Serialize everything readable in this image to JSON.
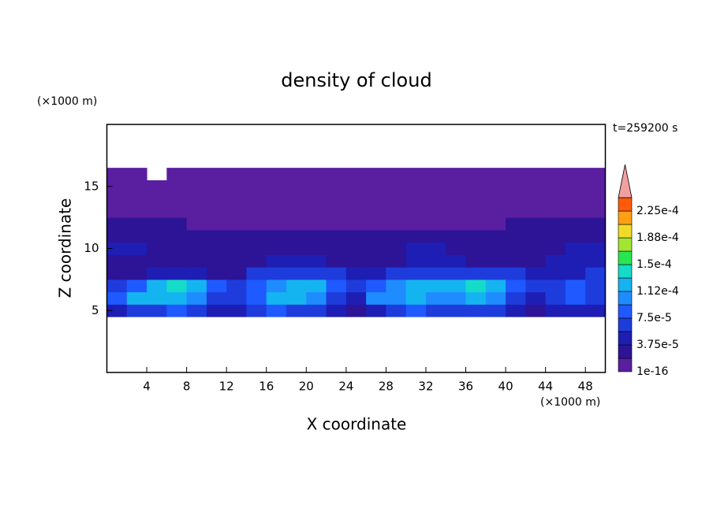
{
  "chart_data": {
    "type": "contour",
    "title": "density of cloud",
    "x_label": "X coordinate",
    "y_label": "Z coordinate",
    "x_unit": "(×1000 m)",
    "y_unit": "(×1000 m)",
    "time_label": "t=259200 s",
    "xlim": [
      0,
      50
    ],
    "ylim": [
      0,
      20
    ],
    "xticks": [
      4,
      8,
      12,
      16,
      20,
      24,
      28,
      32,
      36,
      40,
      44,
      48
    ],
    "yticks": [
      5,
      10,
      15
    ],
    "x": [
      1,
      3,
      5,
      7,
      9,
      11,
      13,
      15,
      17,
      19,
      21,
      23,
      25,
      27,
      29,
      31,
      33,
      35,
      37,
      39,
      41,
      43,
      45,
      47,
      49
    ],
    "z": [
      5,
      6,
      7,
      8,
      9,
      10,
      11,
      12,
      13,
      14,
      15,
      16
    ],
    "values": [
      [
        4.5e-05,
        6.5e-05,
        6.5e-05,
        8.5e-05,
        6.5e-05,
        4.5e-05,
        4.5e-05,
        6.5e-05,
        8.5e-05,
        6.5e-05,
        6.5e-05,
        4.5e-05,
        2.5e-05,
        4.5e-05,
        6.5e-05,
        8.5e-05,
        6.5e-05,
        6.5e-05,
        6.5e-05,
        6.5e-05,
        4.5e-05,
        2.5e-05,
        4.5e-05,
        4.5e-05,
        4.5e-05
      ],
      [
        8.5e-05,
        0.00012,
        0.00012,
        0.00012,
        0.000105,
        6.5e-05,
        6.5e-05,
        8.5e-05,
        0.00012,
        0.00012,
        0.000105,
        6.5e-05,
        4.5e-05,
        0.000105,
        0.000105,
        0.00012,
        0.000105,
        0.000105,
        0.00012,
        0.000105,
        6.5e-05,
        4.5e-05,
        6.5e-05,
        8.5e-05,
        6.5e-05
      ],
      [
        6.5e-05,
        8.5e-05,
        0.00012,
        0.00014,
        0.00012,
        8.5e-05,
        6.5e-05,
        8.5e-05,
        0.000105,
        0.00012,
        0.00012,
        8.5e-05,
        6.5e-05,
        8.5e-05,
        0.000105,
        0.00012,
        0.00012,
        0.00012,
        0.00014,
        0.00012,
        8.5e-05,
        6.5e-05,
        6.5e-05,
        8.5e-05,
        6.5e-05
      ],
      [
        2.5e-05,
        2.5e-05,
        4.5e-05,
        4.5e-05,
        4.5e-05,
        2.5e-05,
        2.5e-05,
        6.5e-05,
        6.5e-05,
        6.5e-05,
        6.5e-05,
        6.5e-05,
        4.5e-05,
        4.5e-05,
        6.5e-05,
        6.5e-05,
        6.5e-05,
        6.5e-05,
        6.5e-05,
        6.5e-05,
        6.5e-05,
        4.5e-05,
        4.5e-05,
        4.5e-05,
        6.5e-05
      ],
      [
        2.5e-05,
        2.5e-05,
        2.5e-05,
        2.5e-05,
        2.5e-05,
        2.5e-05,
        2.5e-05,
        2.5e-05,
        4.5e-05,
        4.5e-05,
        4.5e-05,
        2.5e-05,
        2.5e-05,
        2.5e-05,
        2.5e-05,
        4.5e-05,
        4.5e-05,
        4.5e-05,
        2.5e-05,
        2.5e-05,
        2.5e-05,
        2.5e-05,
        4.5e-05,
        4.5e-05,
        4.5e-05
      ],
      [
        4.5e-05,
        4.5e-05,
        2.5e-05,
        2.5e-05,
        2.5e-05,
        2.5e-05,
        2.5e-05,
        2.5e-05,
        2.5e-05,
        2.5e-05,
        2.5e-05,
        2.5e-05,
        2.5e-05,
        2.5e-05,
        2.5e-05,
        4.5e-05,
        4.5e-05,
        2.5e-05,
        2.5e-05,
        2.5e-05,
        2.5e-05,
        2.5e-05,
        2.5e-05,
        4.5e-05,
        4.5e-05
      ],
      [
        2.5e-05,
        2.5e-05,
        2.5e-05,
        2.5e-05,
        2.5e-05,
        2.5e-05,
        2.5e-05,
        2.5e-05,
        2.5e-05,
        2.5e-05,
        2.5e-05,
        2.5e-05,
        2.5e-05,
        2.5e-05,
        2.5e-05,
        2.5e-05,
        2.5e-05,
        2.5e-05,
        2.5e-05,
        2.5e-05,
        2.5e-05,
        2.5e-05,
        2.5e-05,
        2.5e-05,
        2.5e-05
      ],
      [
        2.5e-05,
        2.5e-05,
        2.5e-05,
        2.5e-05,
        1e-05,
        1e-05,
        1e-05,
        1e-05,
        1e-05,
        1e-05,
        1e-05,
        1e-05,
        1e-05,
        1e-05,
        1e-05,
        1e-05,
        1e-05,
        1e-05,
        1e-05,
        1e-05,
        2.5e-05,
        2.5e-05,
        2.5e-05,
        2.5e-05,
        2.5e-05
      ],
      [
        1e-05,
        1e-05,
        1e-05,
        1e-05,
        1e-05,
        1e-05,
        1e-05,
        1e-05,
        1e-05,
        1e-05,
        1e-05,
        1e-05,
        1e-05,
        1e-05,
        1e-05,
        1e-05,
        1e-05,
        1e-05,
        1e-05,
        1e-05,
        1e-05,
        1e-05,
        1e-05,
        1e-05,
        1e-05
      ],
      [
        1e-05,
        1e-05,
        1e-05,
        1e-05,
        1e-05,
        1e-05,
        1e-05,
        1e-05,
        1e-05,
        1e-05,
        1e-05,
        1e-05,
        1e-05,
        1e-05,
        1e-05,
        1e-05,
        1e-05,
        1e-05,
        1e-05,
        1e-05,
        1e-05,
        1e-05,
        1e-05,
        1e-05,
        1e-05
      ],
      [
        1e-05,
        1e-05,
        1e-05,
        1e-05,
        1e-05,
        1e-05,
        1e-05,
        1e-05,
        1e-05,
        1e-05,
        1e-05,
        1e-05,
        1e-05,
        1e-05,
        1e-05,
        1e-05,
        1e-05,
        1e-05,
        1e-05,
        1e-05,
        1e-05,
        1e-05,
        1e-05,
        1e-05,
        1e-05
      ],
      [
        1e-05,
        1e-05,
        null,
        1e-05,
        1e-05,
        1e-05,
        1e-05,
        1e-05,
        1e-05,
        1e-05,
        1e-05,
        1e-05,
        1e-05,
        1e-05,
        1e-05,
        1e-05,
        1e-05,
        1e-05,
        1e-05,
        1e-05,
        1e-05,
        1e-05,
        1e-05,
        1e-05,
        1e-05
      ]
    ],
    "levels": [
      {
        "value": 1e-16,
        "label": "1e-16"
      },
      1.875e-05,
      {
        "value": 3.75e-05,
        "label": "3.75e-5"
      },
      5.625e-05,
      {
        "value": 7.5e-05,
        "label": "7.5e-5"
      },
      9.375e-05,
      {
        "value": 0.0001125,
        "label": "1.12e-4"
      },
      0.00013125,
      {
        "value": 0.00015,
        "label": "1.5e-4"
      },
      0.00016875,
      {
        "value": 0.0001875,
        "label": "1.88e-4"
      },
      0.00020625,
      {
        "value": 0.000225,
        "label": "2.25e-4"
      },
      0.00024375
    ],
    "colors": [
      "#5a1ea0",
      "#2d1496",
      "#1e1eb4",
      "#1e3cdc",
      "#1e5aff",
      "#1e8cff",
      "#14b4f0",
      "#14dcc8",
      "#28e650",
      "#a0e632",
      "#f0dc28",
      "#ffa014",
      "#ff5a0a",
      "#f0a0a0"
    ]
  }
}
